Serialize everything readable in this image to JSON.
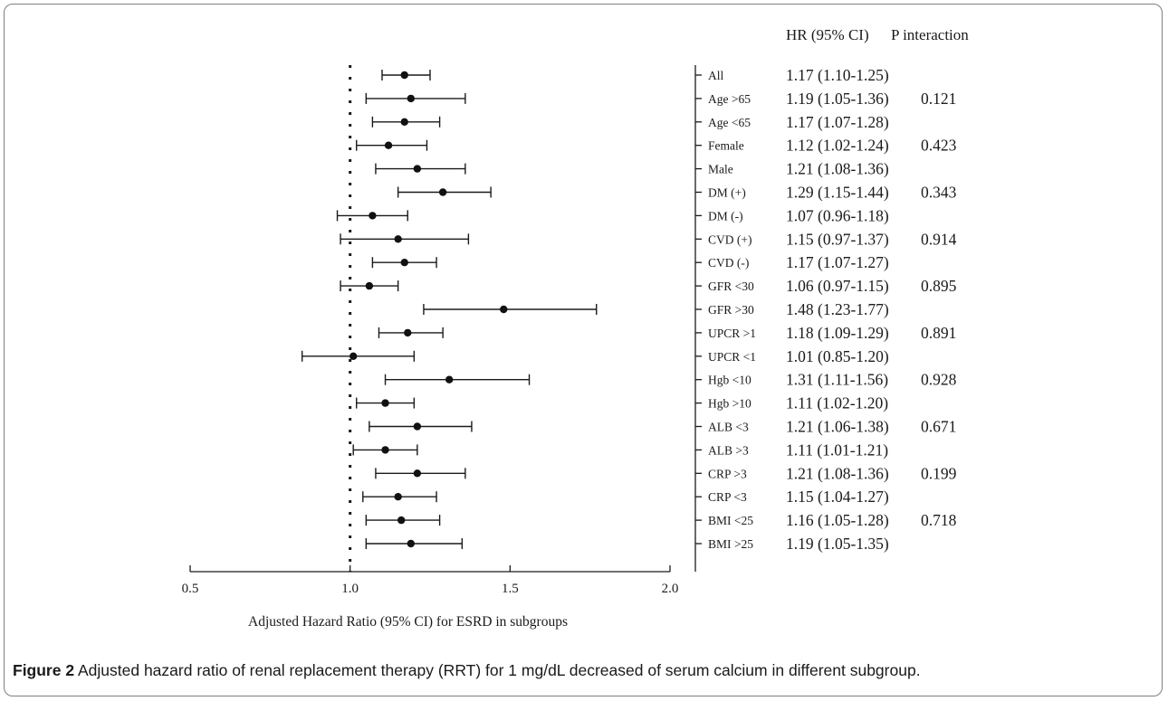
{
  "figure": {
    "caption_label": "Figure 2",
    "caption_text": "Adjusted hazard ratio of renal replacement therapy (RRT) for 1 mg/dL decreased of serum calcium in different subgroup."
  },
  "chart_data": {
    "type": "forest",
    "xlabel": "Adjusted Hazard Ratio (95% CI) for ESRD in subgroups",
    "xlim": [
      0.5,
      2.0
    ],
    "xticks": [
      "0.5",
      "1.0",
      "1.5",
      "2.0"
    ],
    "reference_line": 1.0,
    "column_headers": {
      "hr": "HR (95% CI)",
      "p": "P interaction"
    },
    "rows": [
      {
        "label": "All",
        "hr": 1.17,
        "lo": 1.1,
        "hi": 1.25,
        "hr_text": "1.17 (1.10-1.25)",
        "p": ""
      },
      {
        "label": "Age >65",
        "hr": 1.19,
        "lo": 1.05,
        "hi": 1.36,
        "hr_text": "1.19 (1.05-1.36)",
        "p": "0.121"
      },
      {
        "label": "Age <65",
        "hr": 1.17,
        "lo": 1.07,
        "hi": 1.28,
        "hr_text": "1.17 (1.07-1.28)",
        "p": ""
      },
      {
        "label": "Female",
        "hr": 1.12,
        "lo": 1.02,
        "hi": 1.24,
        "hr_text": "1.12 (1.02-1.24)",
        "p": "0.423"
      },
      {
        "label": "Male",
        "hr": 1.21,
        "lo": 1.08,
        "hi": 1.36,
        "hr_text": "1.21 (1.08-1.36)",
        "p": ""
      },
      {
        "label": "DM (+)",
        "hr": 1.29,
        "lo": 1.15,
        "hi": 1.44,
        "hr_text": "1.29 (1.15-1.44)",
        "p": "0.343"
      },
      {
        "label": "DM (-)",
        "hr": 1.07,
        "lo": 0.96,
        "hi": 1.18,
        "hr_text": "1.07 (0.96-1.18)",
        "p": ""
      },
      {
        "label": "CVD (+)",
        "hr": 1.15,
        "lo": 0.97,
        "hi": 1.37,
        "hr_text": "1.15 (0.97-1.37)",
        "p": "0.914"
      },
      {
        "label": "CVD (-)",
        "hr": 1.17,
        "lo": 1.07,
        "hi": 1.27,
        "hr_text": "1.17 (1.07-1.27)",
        "p": ""
      },
      {
        "label": "GFR <30",
        "hr": 1.06,
        "lo": 0.97,
        "hi": 1.15,
        "hr_text": "1.06 (0.97-1.15)",
        "p": "0.895"
      },
      {
        "label": "GFR >30",
        "hr": 1.48,
        "lo": 1.23,
        "hi": 1.77,
        "hr_text": "1.48 (1.23-1.77)",
        "p": ""
      },
      {
        "label": "UPCR >1",
        "hr": 1.18,
        "lo": 1.09,
        "hi": 1.29,
        "hr_text": "1.18 (1.09-1.29)",
        "p": "0.891"
      },
      {
        "label": "UPCR <1",
        "hr": 1.01,
        "lo": 0.85,
        "hi": 1.2,
        "hr_text": "1.01 (0.85-1.20)",
        "p": ""
      },
      {
        "label": "Hgb <10",
        "hr": 1.31,
        "lo": 1.11,
        "hi": 1.56,
        "hr_text": "1.31 (1.11-1.56)",
        "p": "0.928"
      },
      {
        "label": "Hgb >10",
        "hr": 1.11,
        "lo": 1.02,
        "hi": 1.2,
        "hr_text": "1.11 (1.02-1.20)",
        "p": ""
      },
      {
        "label": "ALB <3",
        "hr": 1.21,
        "lo": 1.06,
        "hi": 1.38,
        "hr_text": "1.21 (1.06-1.38)",
        "p": "0.671"
      },
      {
        "label": "ALB >3",
        "hr": 1.11,
        "lo": 1.01,
        "hi": 1.21,
        "hr_text": "1.11 (1.01-1.21)",
        "p": ""
      },
      {
        "label": "CRP >3",
        "hr": 1.21,
        "lo": 1.08,
        "hi": 1.36,
        "hr_text": "1.21 (1.08-1.36)",
        "p": "0.199"
      },
      {
        "label": "CRP <3",
        "hr": 1.15,
        "lo": 1.04,
        "hi": 1.27,
        "hr_text": "1.15 (1.04-1.27)",
        "p": ""
      },
      {
        "label": "BMI <25",
        "hr": 1.16,
        "lo": 1.05,
        "hi": 1.28,
        "hr_text": "1.16 (1.05-1.28)",
        "p": "0.718"
      },
      {
        "label": "BMI >25",
        "hr": 1.19,
        "lo": 1.05,
        "hi": 1.35,
        "hr_text": "1.19 (1.05-1.35)",
        "p": ""
      }
    ]
  }
}
